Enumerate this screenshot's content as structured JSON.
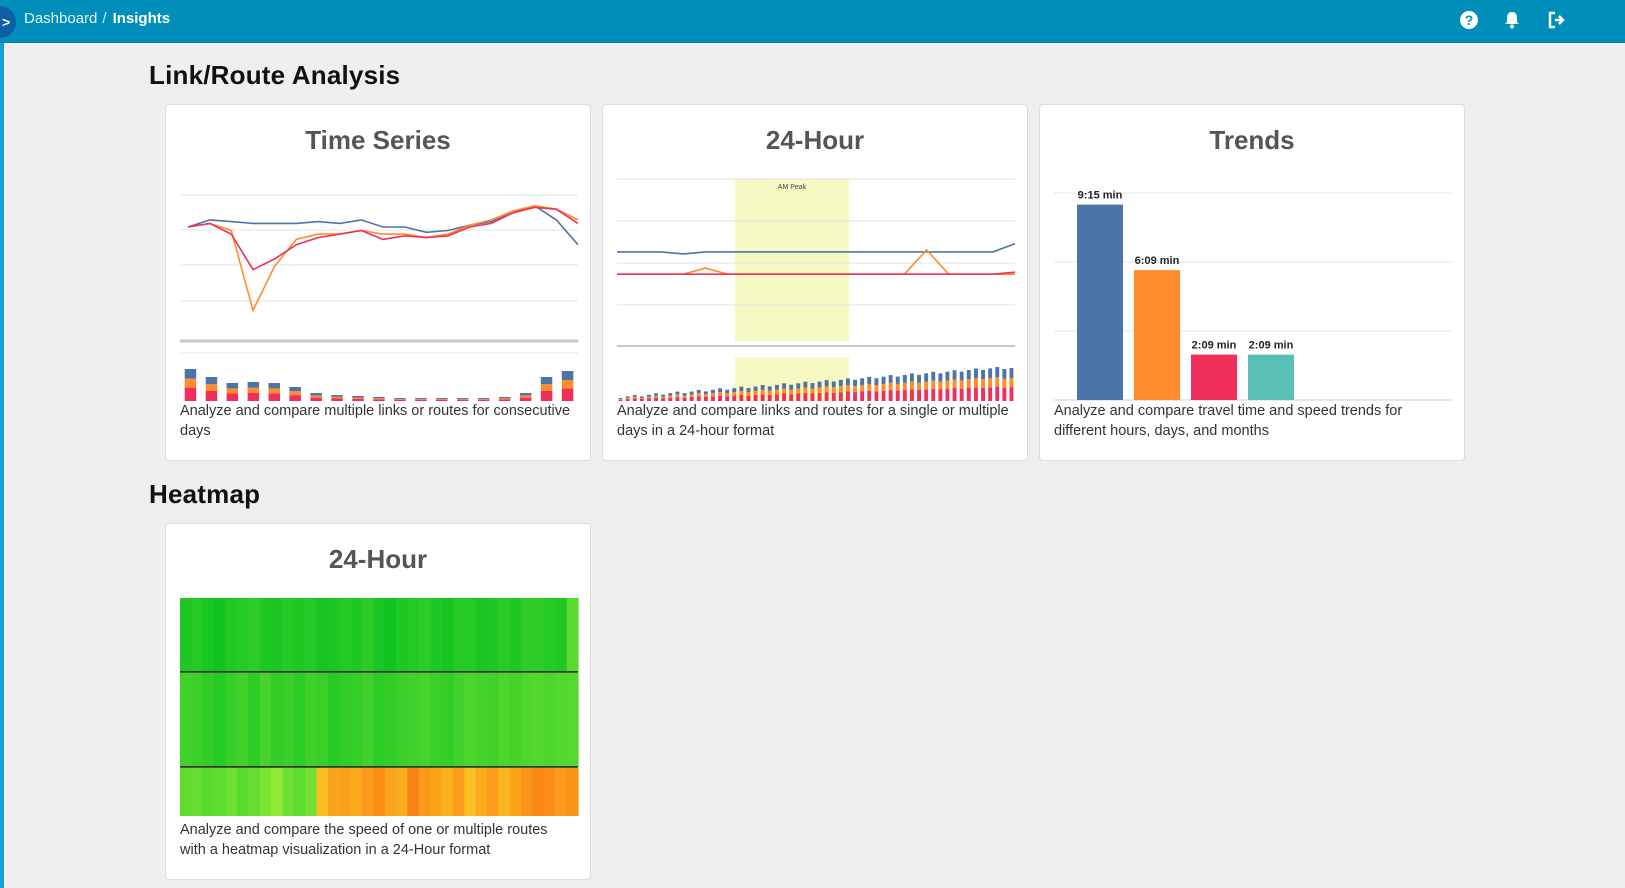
{
  "breadcrumb": {
    "toggle_glyph": ">",
    "home": "Dashboard",
    "separator": "/",
    "current": "Insights"
  },
  "header_icons": [
    "help-icon",
    "bell-icon",
    "logout-icon"
  ],
  "sections": {
    "link_route": {
      "title": "Link/Route Analysis"
    },
    "heatmap": {
      "title": "Heatmap"
    }
  },
  "cards": {
    "time_series": {
      "title": "Time Series",
      "description": "Analyze and compare multiple links or routes for consecutive days"
    },
    "hour24": {
      "title": "24-Hour",
      "description": "Analyze and compare links and routes for a single or multiple days in a 24-hour format",
      "peak_label": "AM Peak"
    },
    "trends": {
      "title": "Trends",
      "description": "Analyze and compare travel time and speed trends for different hours, days, and months"
    },
    "heatmap24": {
      "title": "24-Hour",
      "description": "Analyze and compare the speed of one or multiple routes with a heatmap visualization in a 24-Hour format"
    }
  },
  "colors": {
    "blue": "#4c74a8",
    "orange": "#ff8c2a",
    "red": "#f0305a",
    "teal": "#5abfb4",
    "header": "#008fbb"
  },
  "chart_data": [
    {
      "type": "line",
      "id": "time-series-preview",
      "title": "",
      "series": [
        {
          "values": [
            62,
            66,
            65,
            64,
            64,
            64,
            65,
            64,
            66,
            62,
            62,
            59,
            60,
            63,
            65,
            70,
            74,
            66,
            52
          ]
        },
        {
          "values": [
            62,
            64,
            60,
            15,
            40,
            55,
            58,
            58,
            60,
            58,
            58,
            56,
            58,
            63,
            66,
            71,
            74,
            72,
            66
          ]
        },
        {
          "values": [
            62,
            64,
            58,
            38,
            44,
            52,
            56,
            58,
            60,
            55,
            57,
            56,
            57,
            62,
            64,
            70,
            73,
            72,
            64
          ]
        }
      ]
    },
    {
      "type": "line",
      "id": "hour24-preview",
      "title": "",
      "series": [
        {
          "values": [
            44,
            44,
            44,
            43,
            44,
            44,
            44,
            44,
            44,
            44,
            44,
            44,
            44,
            44,
            44,
            44,
            44,
            44,
            48
          ]
        },
        {
          "values": [
            33,
            33,
            33,
            33,
            36,
            33,
            33,
            33,
            33,
            33,
            33,
            33,
            33,
            33,
            45,
            33,
            33,
            33,
            33
          ]
        },
        {
          "values": [
            33,
            33,
            33,
            33,
            33,
            33,
            33,
            33,
            33,
            33,
            33,
            33,
            33,
            33,
            33,
            33,
            33,
            33,
            34
          ]
        }
      ]
    },
    {
      "type": "bar",
      "id": "trends-preview",
      "title": "",
      "categories": [
        "",
        "",
        "",
        ""
      ],
      "values": [
        9.25,
        6.15,
        2.15,
        2.15
      ],
      "data_labels": [
        "9:15 min",
        "6:09 min",
        "2:09 min",
        "2:09 min"
      ],
      "bar_colors": [
        "#4c74a8",
        "#ff8c2a",
        "#f0305a",
        "#5abfb4"
      ],
      "ylim": [
        0,
        10
      ]
    },
    {
      "type": "heatmap",
      "id": "heatmap-preview",
      "title": "",
      "rows": [
        {
          "values": [
            0.9,
            0.88,
            0.92,
            0.95,
            0.9,
            0.88,
            0.86,
            0.9,
            0.91,
            0.88,
            0.9,
            0.89,
            0.93,
            0.91,
            0.88,
            0.9,
            0.86,
            0.92,
            0.95,
            0.9,
            0.89,
            0.86,
            0.9,
            0.93,
            0.88,
            0.88,
            0.92,
            0.9,
            0.87,
            0.9,
            0.85,
            0.86,
            0.88,
            0.9,
            0.72
          ]
        },
        {
          "values": [
            0.8,
            0.82,
            0.85,
            0.88,
            0.83,
            0.8,
            0.86,
            0.78,
            0.84,
            0.82,
            0.86,
            0.8,
            0.82,
            0.88,
            0.85,
            0.83,
            0.8,
            0.86,
            0.84,
            0.82,
            0.8,
            0.78,
            0.82,
            0.84,
            0.8,
            0.76,
            0.78,
            0.8,
            0.76,
            0.78,
            0.75,
            0.74,
            0.76,
            0.74,
            0.73
          ]
        },
        {
          "values": [
            0.7,
            0.68,
            0.72,
            0.7,
            0.66,
            0.72,
            0.68,
            0.62,
            0.55,
            0.66,
            0.7,
            0.64,
            0.4,
            0.3,
            0.28,
            0.32,
            0.26,
            0.22,
            0.3,
            0.33,
            0.18,
            0.26,
            0.3,
            0.35,
            0.28,
            0.4,
            0.32,
            0.28,
            0.36,
            0.3,
            0.24,
            0.2,
            0.22,
            0.26,
            0.24
          ]
        }
      ]
    }
  ]
}
